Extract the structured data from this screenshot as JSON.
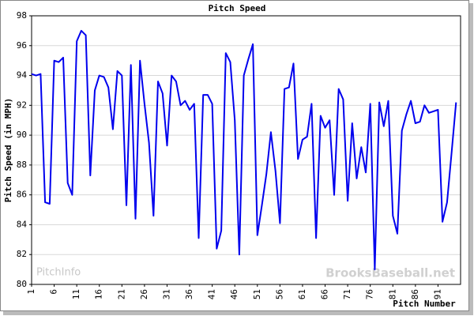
{
  "chart_data": {
    "type": "line",
    "title": "Pitch Speed",
    "x_label": "Pitch Number",
    "y_label": "Pitch Speed (in MPH)",
    "annotations": [
      "PitchInfo",
      "BrooksBaseball.net"
    ],
    "x": [
      1,
      2,
      3,
      4,
      5,
      6,
      7,
      8,
      9,
      10,
      11,
      12,
      13,
      14,
      15,
      16,
      17,
      18,
      19,
      20,
      21,
      22,
      23,
      24,
      25,
      26,
      27,
      28,
      29,
      30,
      31,
      32,
      33,
      34,
      35,
      36,
      37,
      38,
      39,
      40,
      41,
      42,
      43,
      44,
      45,
      46,
      47,
      48,
      49,
      50,
      51,
      52,
      53,
      54,
      55,
      56,
      57,
      58,
      59,
      60,
      61,
      62,
      63,
      64,
      65,
      66,
      67,
      68,
      69,
      70,
      71,
      72,
      73,
      74,
      75,
      76,
      77,
      78,
      79,
      80,
      81,
      82,
      83,
      84,
      85,
      86,
      87,
      88,
      89,
      90,
      91,
      92,
      93,
      94,
      95
    ],
    "series": [
      {
        "name": "Pitch Speed",
        "color": "#0000ee",
        "values": [
          94.1,
          94.0,
          94.1,
          85.5,
          85.4,
          95.0,
          94.9,
          95.2,
          86.8,
          86.0,
          96.3,
          97.0,
          96.7,
          87.3,
          93.0,
          94.0,
          93.9,
          93.2,
          90.4,
          94.3,
          94.0,
          85.3,
          94.7,
          84.4,
          95.0,
          92.1,
          89.5,
          84.6,
          93.6,
          92.8,
          89.3,
          94.0,
          93.6,
          92.0,
          92.3,
          91.7,
          92.1,
          83.1,
          92.7,
          92.7,
          92.1,
          82.4,
          83.6,
          95.5,
          94.9,
          91.0,
          82.0,
          94.0,
          95.1,
          96.1,
          83.3,
          85.3,
          87.4,
          90.2,
          87.6,
          84.1,
          93.1,
          93.2,
          94.8,
          88.4,
          89.7,
          89.9,
          92.1,
          83.1,
          91.3,
          90.5,
          91.0,
          86.0,
          93.1,
          92.4,
          85.6,
          90.8,
          87.1,
          89.2,
          87.5,
          92.1,
          81.0,
          92.2,
          90.6,
          92.3,
          84.6,
          83.4,
          90.3,
          91.4,
          92.3,
          90.8,
          90.9,
          92.0,
          91.5,
          91.6,
          91.7,
          84.2,
          85.5,
          88.8,
          92.2
        ]
      }
    ],
    "xlim": [
      1,
      96
    ],
    "xticks": [
      1,
      6,
      11,
      16,
      21,
      26,
      31,
      36,
      41,
      46,
      51,
      56,
      61,
      66,
      71,
      76,
      81,
      86,
      91
    ],
    "ylim": [
      80,
      98
    ],
    "yticks": [
      80,
      82,
      84,
      86,
      88,
      90,
      92,
      94,
      96,
      98
    ],
    "grid": true
  }
}
